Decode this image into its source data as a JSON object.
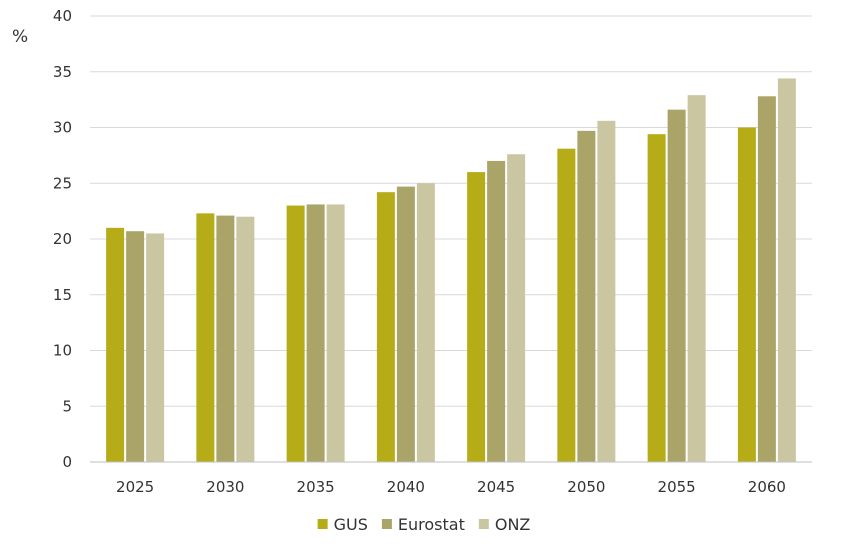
{
  "chart_data": {
    "type": "bar",
    "title": "",
    "xlabel": "",
    "ylabel": "%",
    "ylim": [
      0,
      40
    ],
    "yticks": [
      0,
      5,
      10,
      15,
      20,
      25,
      30,
      35,
      40
    ],
    "grid": true,
    "legend_position": "bottom-center",
    "categories": [
      "2025",
      "2030",
      "2035",
      "2040",
      "2045",
      "2050",
      "2055",
      "2060"
    ],
    "series": [
      {
        "name": "GUS",
        "color": "#b5ac18",
        "values": [
          21.0,
          22.3,
          23.0,
          24.2,
          26.0,
          28.1,
          29.4,
          30.0
        ]
      },
      {
        "name": "Eurostat",
        "color": "#aaa468",
        "values": [
          20.7,
          22.1,
          23.1,
          24.7,
          27.0,
          29.7,
          31.6,
          32.8
        ]
      },
      {
        "name": "ONZ",
        "color": "#cbc6a2",
        "values": [
          20.5,
          22.0,
          23.1,
          25.0,
          27.6,
          30.6,
          32.9,
          34.4
        ]
      }
    ]
  }
}
